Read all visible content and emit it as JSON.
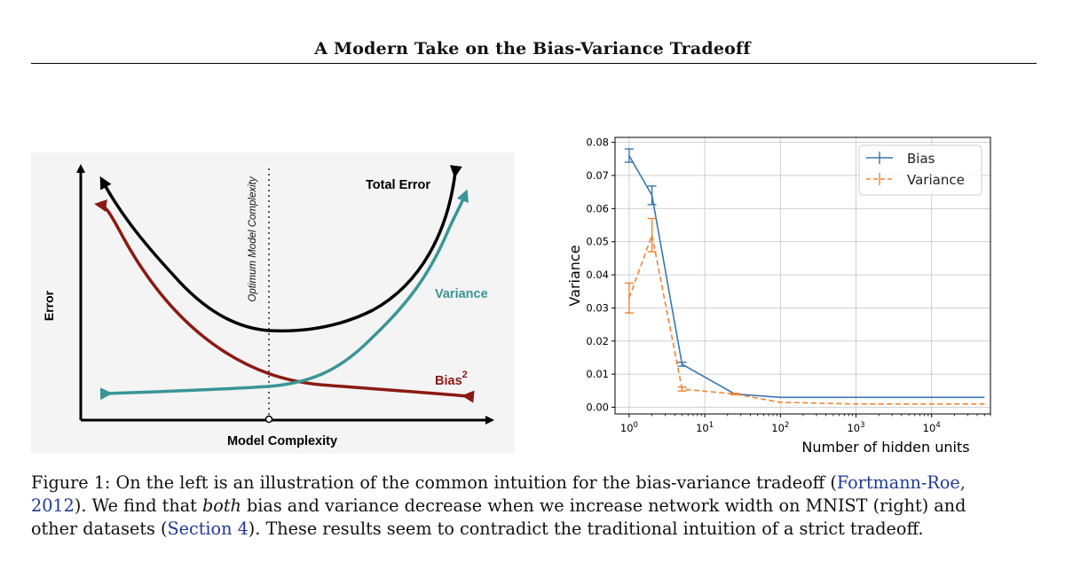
{
  "page": {
    "running_title": "A Modern Take on the Bias-Variance Tradeoff"
  },
  "left_figure": {
    "ylabel": "Error",
    "xlabel": "Model Complexity",
    "optimum_label": "Optimum Model Complexity",
    "total_error_label": "Total Error",
    "variance_label": "Variance",
    "bias_label": "Bias",
    "bias_superscript": "2",
    "colors": {
      "total": "#000000",
      "variance": "#3a9596",
      "bias": "#8b1a12"
    }
  },
  "chart_data": {
    "type": "line",
    "xscale": "log",
    "xlabel": "Number of hidden units",
    "ylabel": "Variance",
    "xlim": [
      0.65,
      60000
    ],
    "ylim": [
      -0.002,
      0.0815
    ],
    "grid": true,
    "legend_position": "top-right",
    "x_tick_labels": [
      "10^0",
      "10^1",
      "10^2",
      "10^3",
      "10^4"
    ],
    "y_tick_labels": [
      "0.00",
      "0.01",
      "0.02",
      "0.03",
      "0.04",
      "0.05",
      "0.06",
      "0.07",
      "0.08"
    ],
    "x": [
      1,
      2,
      5,
      25,
      100,
      1000,
      10000,
      50000
    ],
    "series": [
      {
        "name": "Bias",
        "color": "#3a76af",
        "style": "solid",
        "values": [
          0.076,
          0.064,
          0.013,
          0.004,
          0.003,
          0.003,
          0.003,
          0.003
        ],
        "errors": [
          0.002,
          0.0028,
          0.0006,
          0.0002,
          0,
          0,
          0,
          0
        ]
      },
      {
        "name": "Variance",
        "color": "#ef8636",
        "style": "dashed",
        "values": [
          0.033,
          0.052,
          0.0055,
          0.004,
          0.0015,
          0.001,
          0.001,
          0.001
        ],
        "errors": [
          0.0045,
          0.005,
          0.0006,
          0.0002,
          0,
          0,
          0,
          0
        ]
      }
    ]
  },
  "caption": {
    "l1_a": "Figure 1: On the left is an illustration of the common intuition for the bias-variance tradeoff (",
    "l1_cite": "Fortmann-Roe,",
    "l2_cite": "2012",
    "l2_a": ").  We find that ",
    "l2_em": "both",
    "l2_b": " bias and variance decrease when we increase network width on MNIST (right) and",
    "l3_a": "other datasets (",
    "l3_cite": "Section 4",
    "l3_b": ").  These results seem to contradict the traditional intuition of a strict tradeoff."
  }
}
